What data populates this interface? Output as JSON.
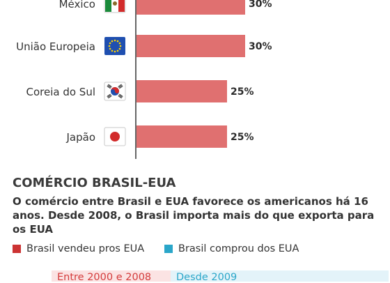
{
  "chart_data": {
    "type": "bar",
    "orientation": "horizontal",
    "categories": [
      "México",
      "União Europeia",
      "Coreia do Sul",
      "Japão"
    ],
    "values": [
      30,
      30,
      25,
      25
    ],
    "value_labels": [
      "30%",
      "30%",
      "25%",
      "25%"
    ],
    "flags": [
      "mexico-flag",
      "eu-flag",
      "south-korea-flag",
      "japan-flag"
    ],
    "bar_color": "#e07070",
    "grid": false
  },
  "section": {
    "title": "COMÉRCIO BRASIL-EUA",
    "subtitle": "O comércio entre Brasil e EUA favorece os americanos há 16 anos. Desde 2008, o Brasil importa mais do que exporta para os EUA"
  },
  "legend": {
    "sold": {
      "label": "Brasil vendeu pros EUA",
      "color": "#cc3333"
    },
    "bought": {
      "label": "Brasil comprou dos EUA",
      "color": "#2aa6c9"
    }
  },
  "periods": [
    "Entre 2000 e 2008",
    "Desde 2009"
  ]
}
